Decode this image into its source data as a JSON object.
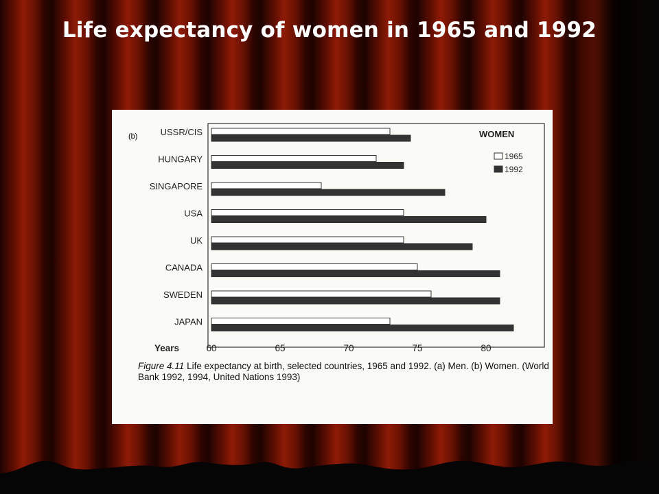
{
  "slide": {
    "title": "Life expectancy of women in 1965 and 1992"
  },
  "figure": {
    "panel_label": "(b)",
    "figure_number": "Figure 4.11",
    "caption": "Life expectancy at birth, selected countries, 1965 and 1992. (a) Men. (b) Women. (World Bank 1992, 1994, United Nations 1993)"
  },
  "chart_data": {
    "type": "bar",
    "orientation": "horizontal",
    "categories": [
      "USSR/CIS",
      "HUNGARY",
      "SINGAPORE",
      "USA",
      "UK",
      "CANADA",
      "SWEDEN",
      "JAPAN"
    ],
    "series": [
      {
        "name": "1965",
        "values": [
          73,
          72,
          68,
          74,
          74,
          75,
          76,
          73
        ],
        "fill": "#ffffff"
      },
      {
        "name": "1992",
        "values": [
          74.5,
          74,
          77,
          80,
          79,
          81,
          81,
          82
        ],
        "fill": "#333333"
      }
    ],
    "legend_title": "WOMEN",
    "xlabel": "Years",
    "xlim": [
      60,
      85
    ],
    "xticks": [
      "60",
      "65",
      "70",
      "75",
      "80",
      "85"
    ],
    "grid": false,
    "legend_position": "top-right"
  },
  "colors": {
    "curtain": "#7a1605",
    "paper": "#fafaf6",
    "ink": "#222222"
  }
}
